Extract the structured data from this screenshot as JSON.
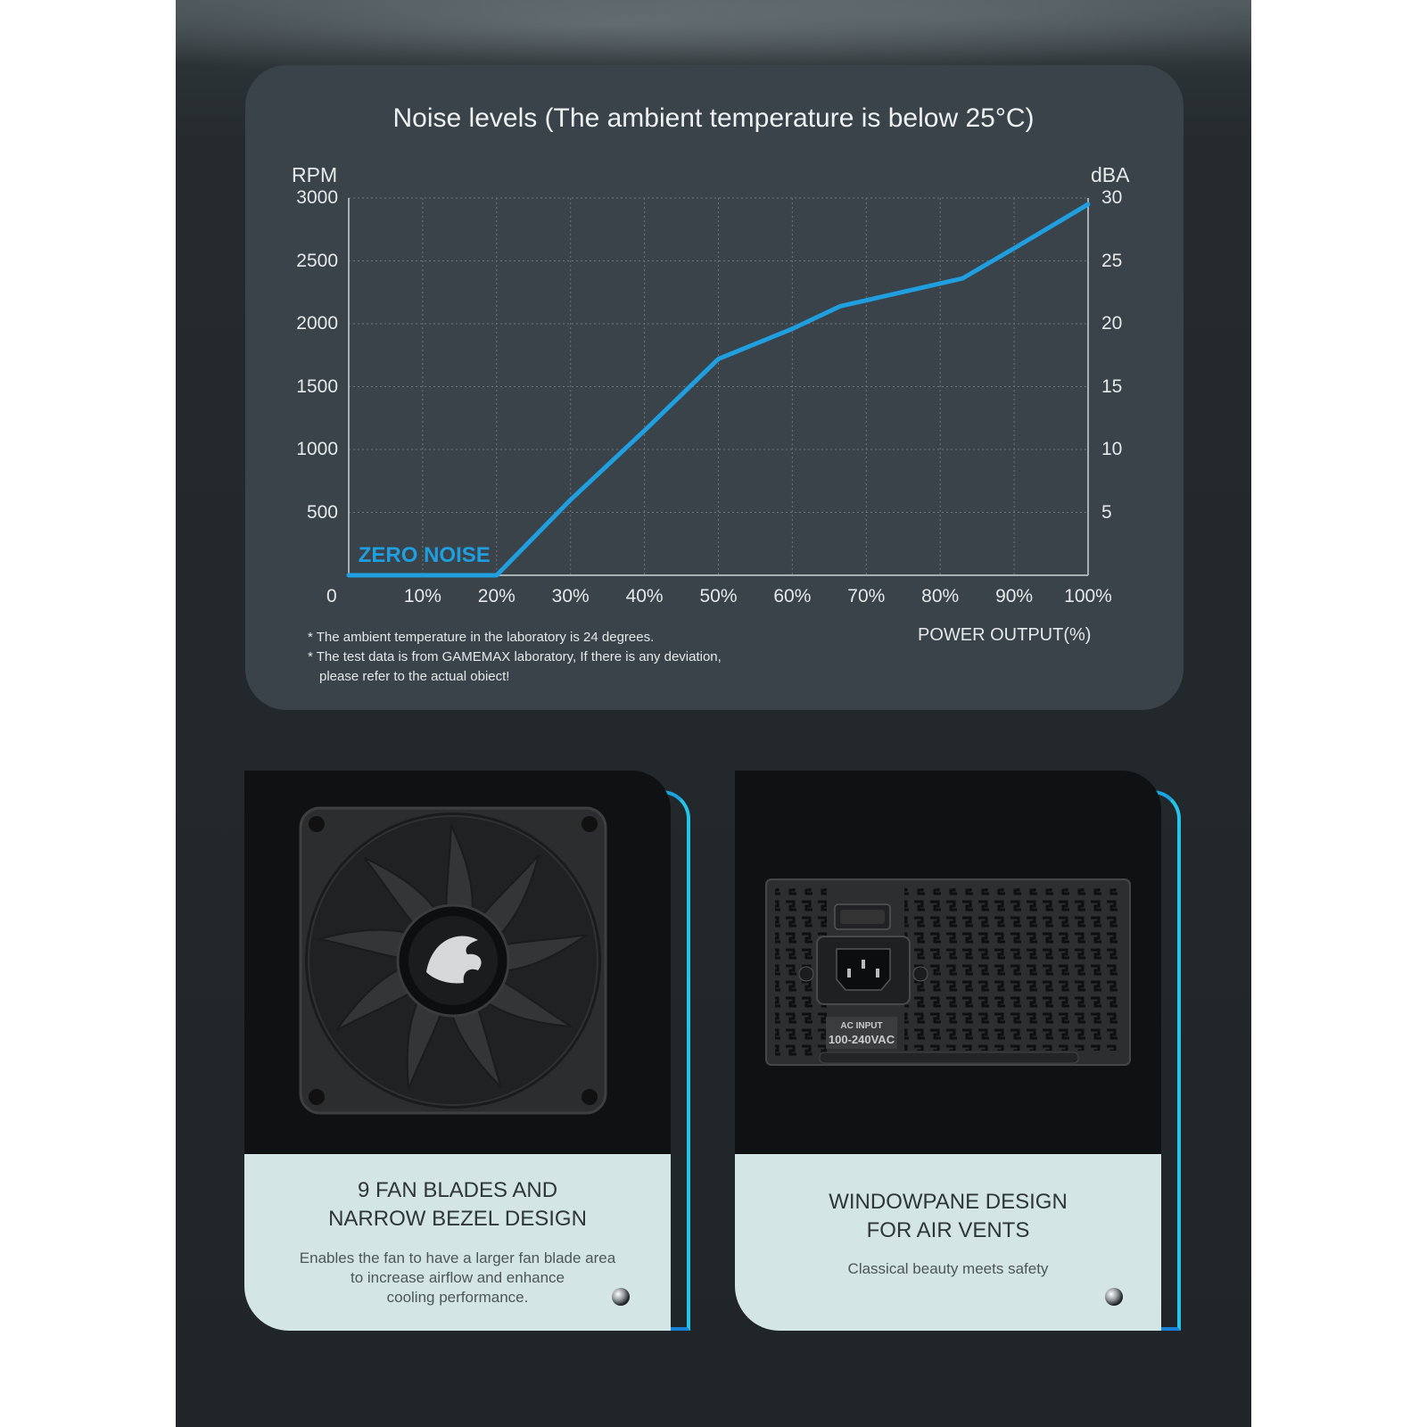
{
  "chart_data": {
    "type": "line",
    "title": "Noise levels (The ambient temperature is below 25°C)",
    "y_left_label": "RPM",
    "y_right_label": "dBA",
    "xlabel": "POWER OUTPUT(%)",
    "x_origin_label": "0",
    "x_ticks": [
      "10%",
      "20%",
      "30%",
      "40%",
      "50%",
      "60%",
      "70%",
      "80%",
      "90%",
      "100%"
    ],
    "y_left_ticks": [
      "3000",
      "2500",
      "2000",
      "1500",
      "1000",
      "500"
    ],
    "y_right_ticks": [
      "30",
      "25",
      "20",
      "15",
      "10",
      "5"
    ],
    "y_left_range": [
      0,
      3000
    ],
    "y_right_range": [
      0,
      30
    ],
    "xlim": [
      0,
      100
    ],
    "grid": true,
    "series": [
      {
        "points": [
          [
            0,
            0
          ],
          [
            20,
            0
          ],
          [
            30,
            600
          ],
          [
            40,
            1150
          ],
          [
            50,
            1720
          ],
          [
            60,
            1960
          ],
          [
            66.5,
            2140
          ],
          [
            83,
            2360
          ],
          [
            90,
            2600
          ],
          [
            100,
            2950
          ]
        ],
        "color": "#1f9ee0"
      }
    ],
    "annotation": "ZERO NOISE",
    "annotation_color": "#1f9ee0",
    "notes": [
      "* The ambient temperature in the laboratory is 24 degrees.",
      "* The test data is from GAMEMAX laboratory, If there is any deviation,",
      "please refer to the actual obiect!"
    ]
  },
  "cards": [
    {
      "title_line1": "9 FAN BLADES AND",
      "title_line2": "NARROW BEZEL DESIGN",
      "desc_line1": "Enables the fan to have a larger fan blade area",
      "desc_line2": "to increase airflow and enhance",
      "desc_line3": "cooling performance.",
      "image": "fan-icon"
    },
    {
      "title_line1": "WINDOWPANE DESIGN",
      "title_line2": "FOR AIR VENTS",
      "desc_line1": "Classical beauty meets safety",
      "image": "psu-rear-panel-icon",
      "panel_label_1": "AC INPUT",
      "panel_label_2": "100-240VAC"
    }
  ],
  "colors": {
    "accent": "#1f9ee0",
    "card_text_bg": "#d3e5e4",
    "chart_bg": "#3a4349"
  }
}
